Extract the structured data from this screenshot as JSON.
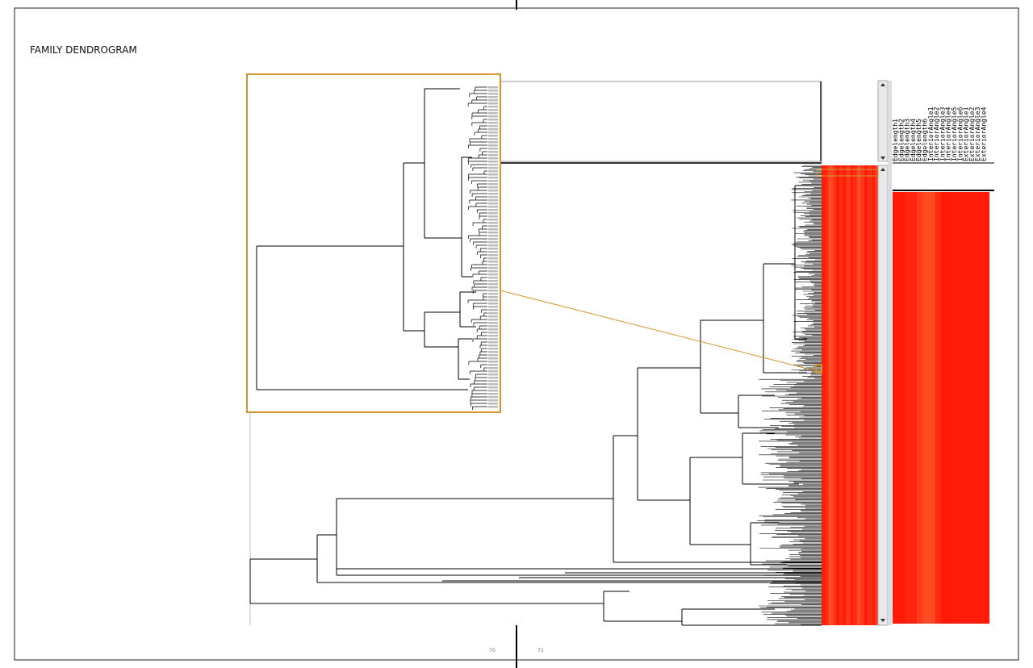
{
  "title": "FAMILY DENDROGRAM",
  "columns": [
    "Edgelength1",
    "Edgelength2",
    "Edgelength3",
    "Edgelength4",
    "Edgelength5",
    "Edgelength6",
    "InteriorAngle1",
    "InteriorAngle2",
    "InteriorAngle3",
    "InteriorAngle4",
    "InteriorAngle5",
    "InteriorAngle6",
    "ExteriorAngle1",
    "ExteriorAngle2",
    "ExteriorAngle3",
    "ExteriorAngle4"
  ],
  "page_numbers": {
    "left": "70",
    "right": "71"
  }
}
